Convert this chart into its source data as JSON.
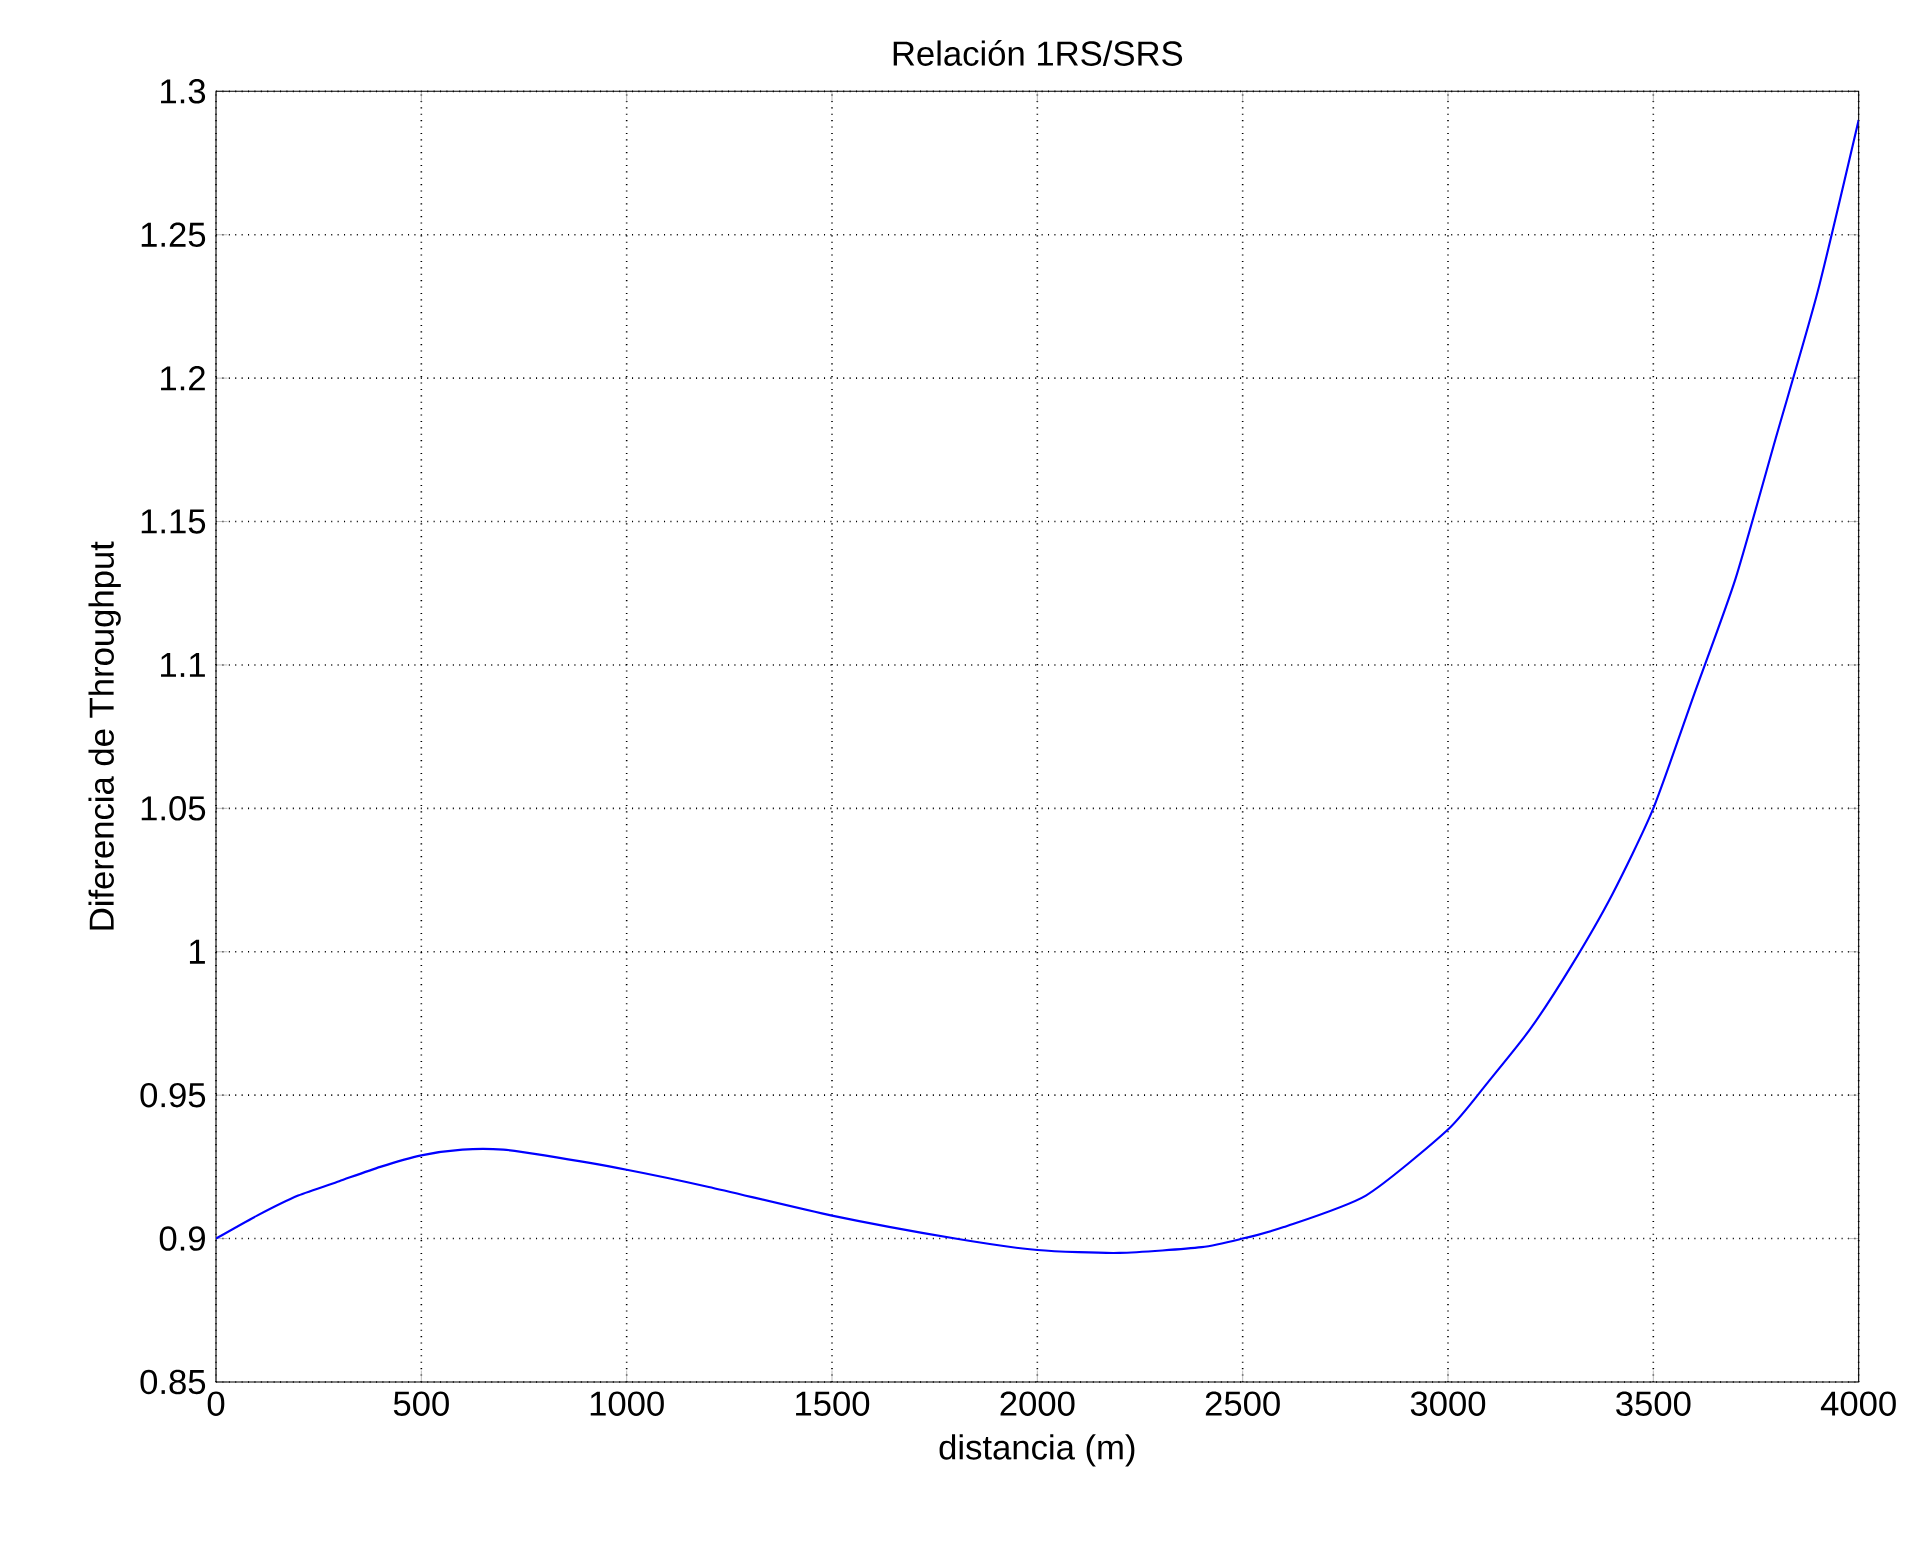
{
  "chart_data": {
    "type": "line",
    "title": "Relación 1RS/SRS",
    "xlabel": "distancia (m)",
    "ylabel": "Diferencia de Throughput",
    "x": [
      0,
      100,
      200,
      300,
      400,
      500,
      600,
      700,
      800,
      1000,
      1200,
      1500,
      1800,
      2000,
      2200,
      2400,
      2500,
      2600,
      2800,
      3000,
      3100,
      3200,
      3300,
      3400,
      3500,
      3600,
      3700,
      3800,
      3900,
      4000
    ],
    "series": [
      {
        "color": "#0000ff",
        "values": [
          0.9,
          0.908,
          0.915,
          0.92,
          0.925,
          0.929,
          0.931,
          0.931,
          0.929,
          0.924,
          0.918,
          0.908,
          0.9,
          0.896,
          0.895,
          0.897,
          0.9,
          0.904,
          0.915,
          0.938,
          0.955,
          0.973,
          0.995,
          1.02,
          1.05,
          1.09,
          1.13,
          1.18,
          1.23,
          1.29
        ]
      }
    ],
    "xlim": [
      0,
      4000
    ],
    "ylim": [
      0.85,
      1.3
    ],
    "xticks": [
      0,
      500,
      1000,
      1500,
      2000,
      2500,
      3000,
      3500,
      4000
    ],
    "yticks": [
      0.85,
      0.9,
      0.95,
      1,
      1.05,
      1.1,
      1.15,
      1.2,
      1.25,
      1.3
    ],
    "grid": true,
    "line_style": "solid"
  }
}
